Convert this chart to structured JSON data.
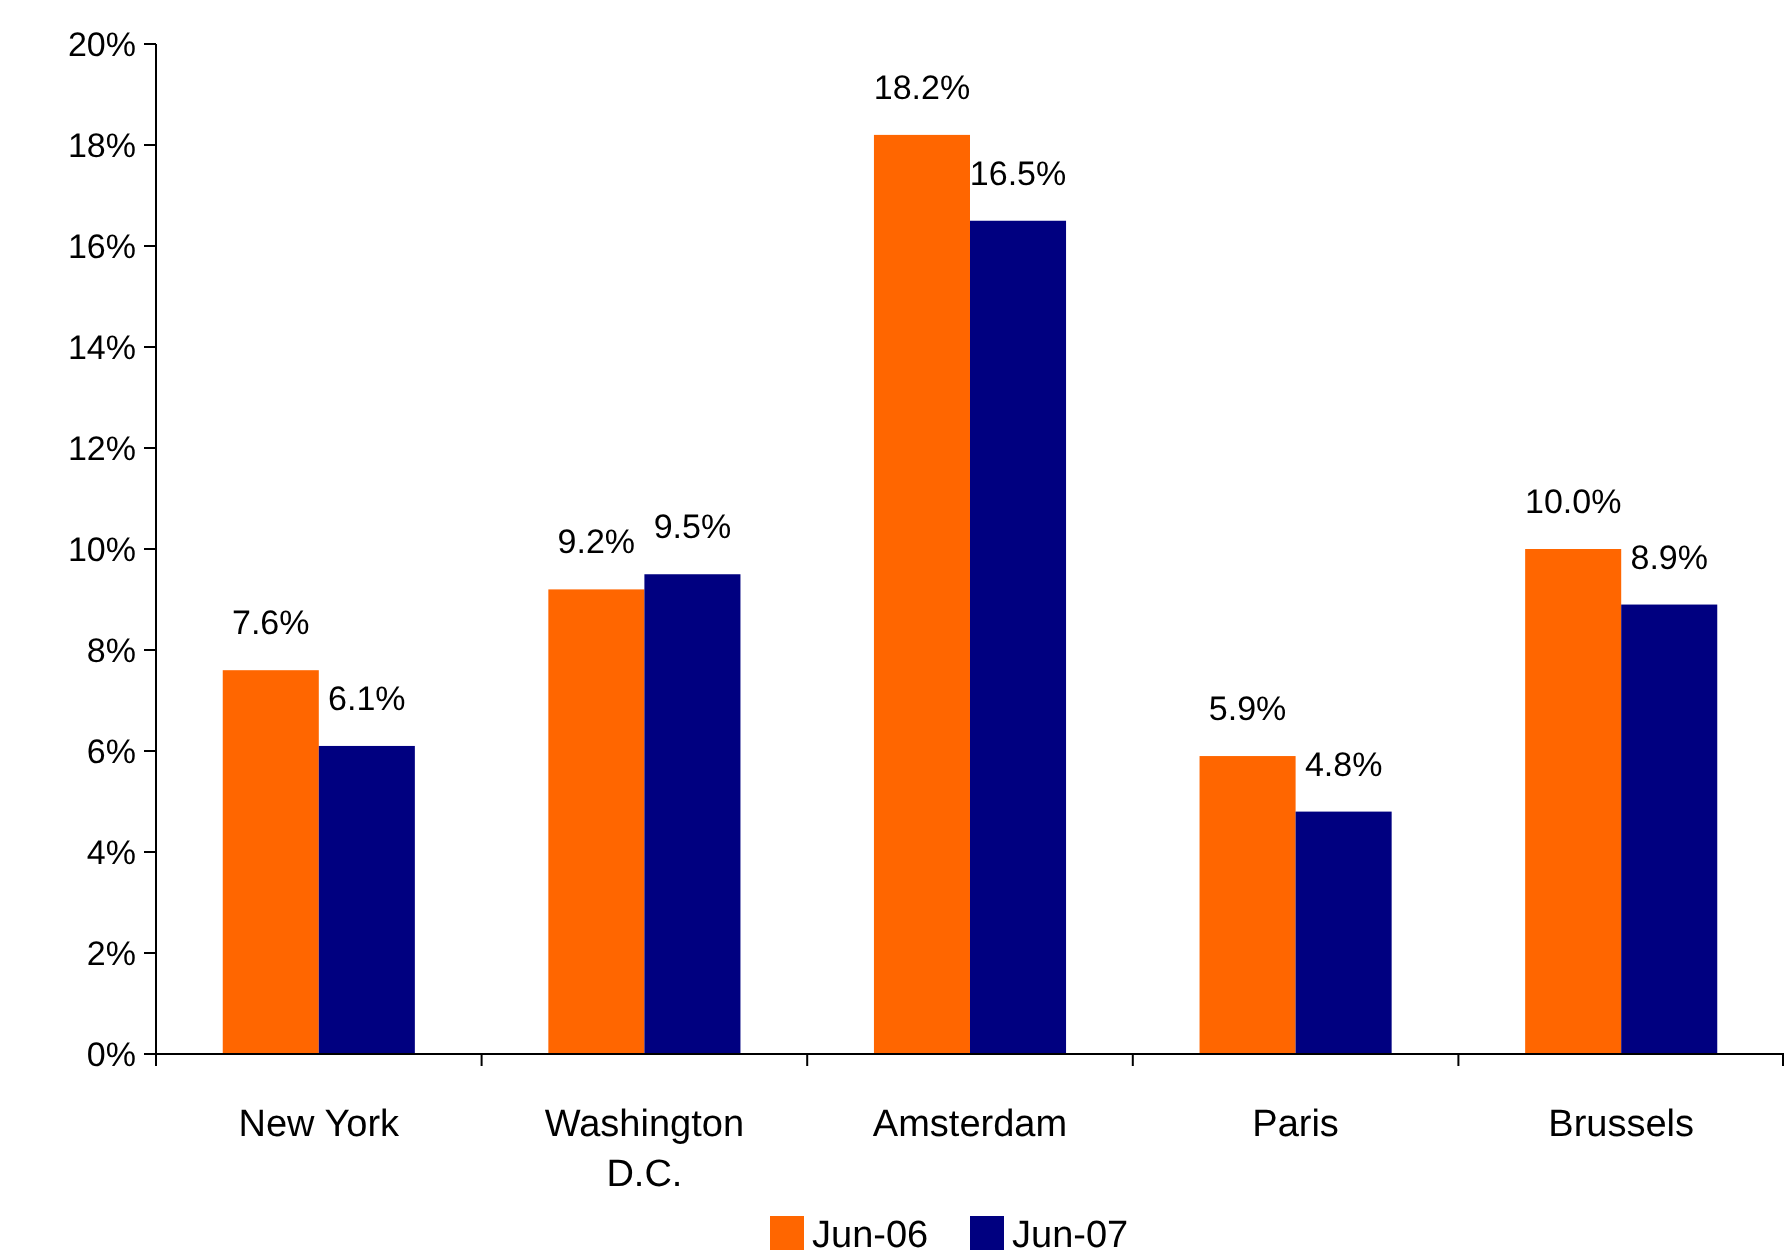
{
  "chart_data": {
    "type": "bar",
    "categories": [
      "New York",
      "Washington D.C.",
      "Amsterdam",
      "Paris",
      "Brussels"
    ],
    "series": [
      {
        "name": "Jun-06",
        "color": "#ff6600",
        "values": [
          7.6,
          9.2,
          18.2,
          5.9,
          10.0
        ],
        "value_labels": [
          "7.6%",
          "9.2%",
          "18.2%",
          "5.9%",
          "10.0%"
        ]
      },
      {
        "name": "Jun-07",
        "color": "#000080",
        "values": [
          6.1,
          9.5,
          16.5,
          4.8,
          8.9
        ],
        "value_labels": [
          "6.1%",
          "9.5%",
          "16.5%",
          "4.8%",
          "8.9%"
        ]
      }
    ],
    "ylim": [
      0,
      20
    ],
    "yticks": [
      {
        "value": 0,
        "label": "0%"
      },
      {
        "value": 2,
        "label": "2%"
      },
      {
        "value": 4,
        "label": "4%"
      },
      {
        "value": 6,
        "label": "6%"
      },
      {
        "value": 8,
        "label": "8%"
      },
      {
        "value": 10,
        "label": "10%"
      },
      {
        "value": 12,
        "label": "12%"
      },
      {
        "value": 14,
        "label": "14%"
      },
      {
        "value": 16,
        "label": "16%"
      },
      {
        "value": 18,
        "label": "18%"
      },
      {
        "value": 20,
        "label": "20%"
      }
    ],
    "legend": "bottom"
  }
}
